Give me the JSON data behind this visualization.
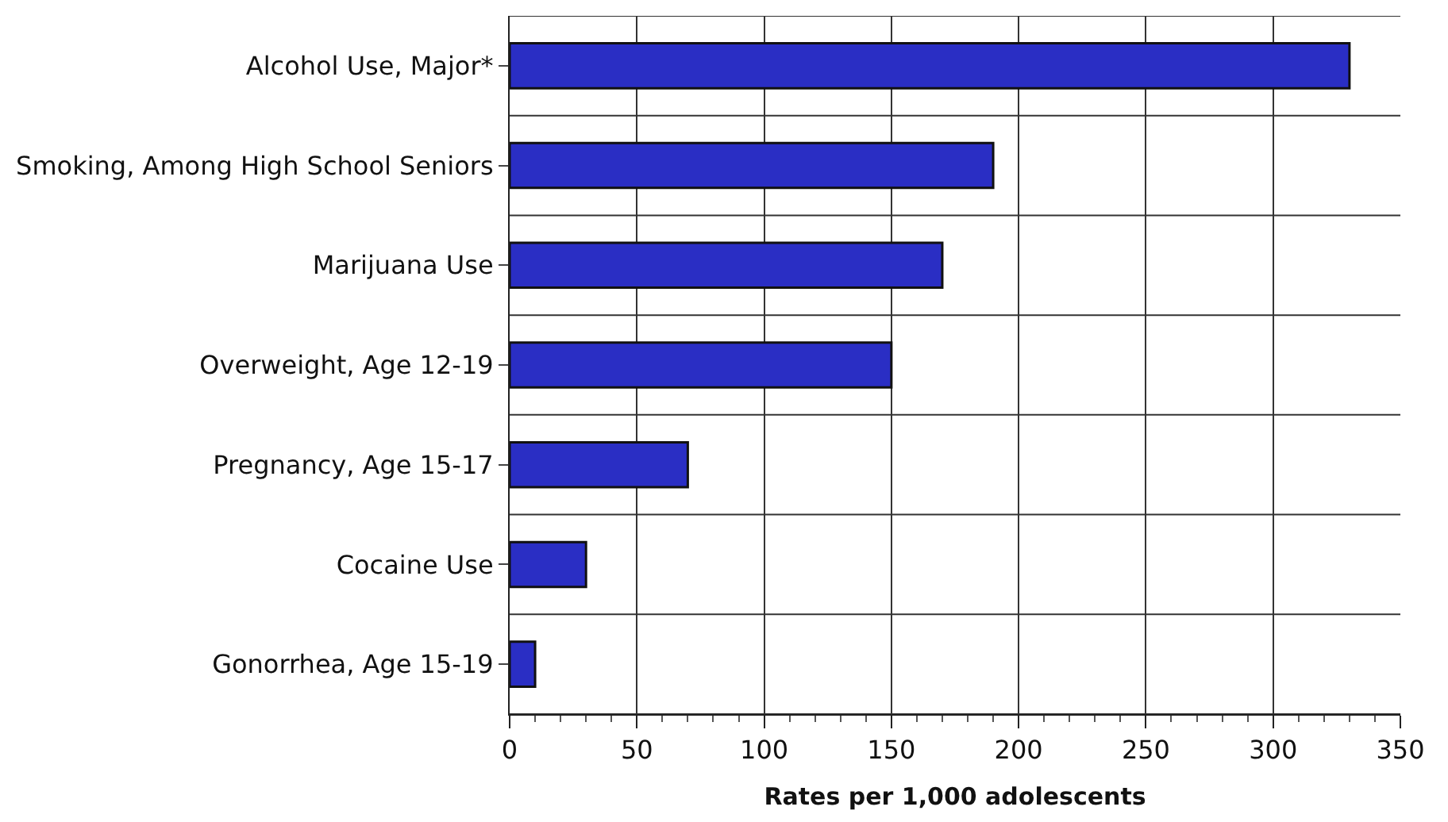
{
  "chart_data": {
    "type": "bar",
    "orientation": "horizontal",
    "xlabel": "Rates per 1,000 adolescents",
    "categories": [
      "Alcohol Use, Major*",
      "Smoking, Among High School Seniors",
      "Marijuana Use",
      "Overweight, Age 12-19",
      "Pregnancy, Age 15-17",
      "Cocaine Use",
      "Gonorrhea, Age 15-19"
    ],
    "values": [
      330,
      190,
      170,
      150,
      70,
      30,
      10
    ],
    "color": "#2a2ec4",
    "xlim": [
      0,
      350
    ],
    "xticks": [
      0,
      50,
      100,
      150,
      200,
      250,
      300,
      350
    ],
    "grid": true
  }
}
